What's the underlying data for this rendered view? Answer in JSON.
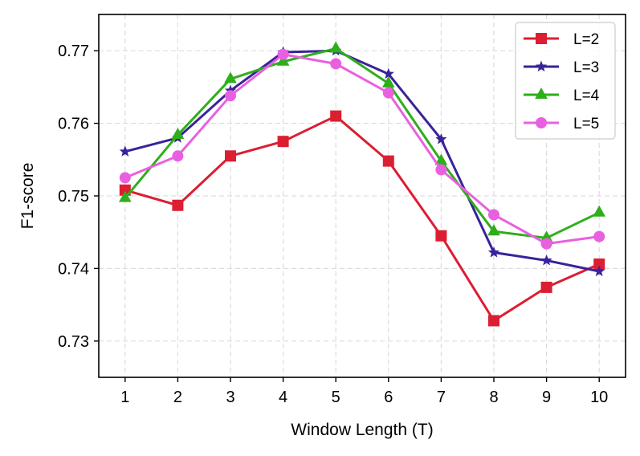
{
  "chart_data": {
    "type": "line",
    "title": "",
    "xlabel": "Window Length (T)",
    "ylabel": "F1-score",
    "x": [
      1,
      2,
      3,
      4,
      5,
      6,
      7,
      8,
      9,
      10
    ],
    "xlim": [
      0.5,
      10.5
    ],
    "ylim": [
      0.725,
      0.775
    ],
    "yticks": [
      0.73,
      0.74,
      0.75,
      0.76,
      0.77
    ],
    "ytick_labels": [
      "0.73",
      "0.74",
      "0.75",
      "0.76",
      "0.77"
    ],
    "xtick_labels": [
      "1",
      "2",
      "3",
      "4",
      "5",
      "6",
      "7",
      "8",
      "9",
      "10"
    ],
    "grid": true,
    "legend_position": "top-right",
    "series": [
      {
        "name": "L=2",
        "color": "#dc1e32",
        "marker": "square",
        "values": [
          0.7508,
          0.7487,
          0.7555,
          0.7575,
          0.761,
          0.7548,
          0.7445,
          0.7328,
          0.7374,
          0.7406
        ]
      },
      {
        "name": "L=3",
        "color": "#3a229a",
        "marker": "star",
        "values": [
          0.7561,
          0.758,
          0.7645,
          0.7698,
          0.77,
          0.7668,
          0.7578,
          0.7422,
          0.7411,
          0.7396
        ]
      },
      {
        "name": "L=4",
        "color": "#2fae1c",
        "marker": "triangle",
        "values": [
          0.7497,
          0.7584,
          0.7661,
          0.7685,
          0.7703,
          0.7655,
          0.7548,
          0.7451,
          0.7442,
          0.7477
        ]
      },
      {
        "name": "L=5",
        "color": "#e860e0",
        "marker": "circle",
        "values": [
          0.7525,
          0.7555,
          0.7638,
          0.7695,
          0.7682,
          0.7642,
          0.7536,
          0.7474,
          0.7434,
          0.7444
        ]
      }
    ]
  }
}
